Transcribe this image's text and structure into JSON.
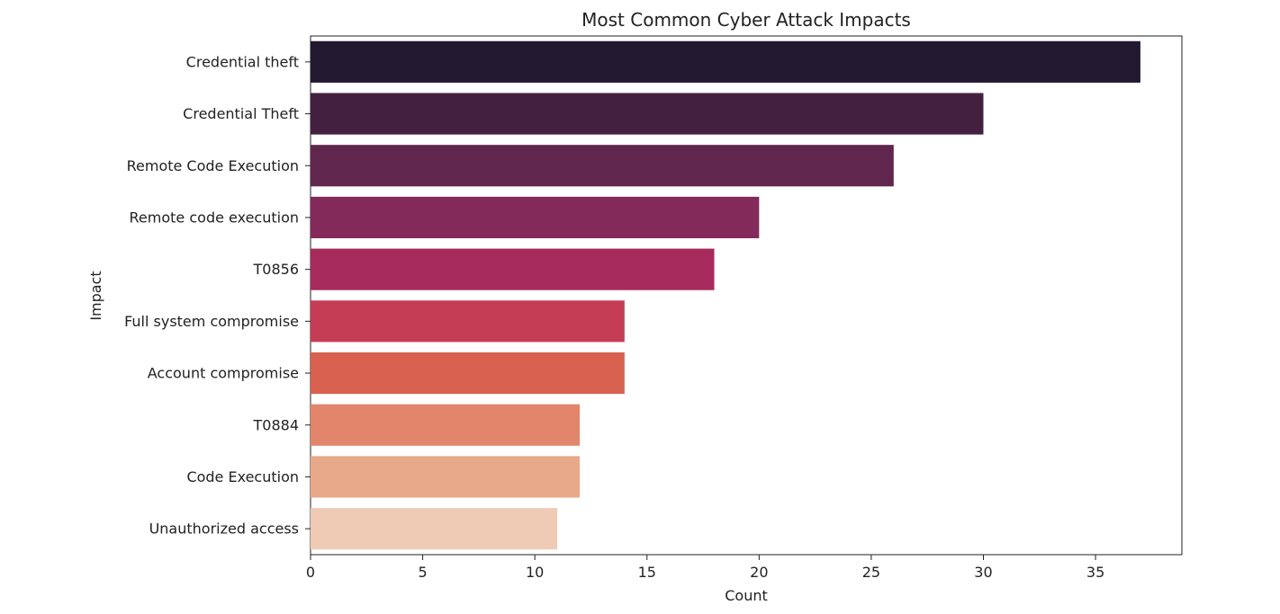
{
  "chart_data": {
    "type": "bar",
    "orientation": "horizontal",
    "title": "Most Common Cyber Attack Impacts",
    "xlabel": "Count",
    "ylabel": "Impact",
    "categories": [
      "Credential theft",
      "Credential Theft",
      "Remote Code Execution",
      "Remote code execution",
      "T0856",
      "Full system compromise",
      "Account compromise",
      "T0884",
      "Code Execution",
      "Unauthorized access"
    ],
    "values": [
      37,
      30,
      26,
      20,
      18,
      14,
      14,
      12,
      12,
      11
    ],
    "colors": [
      "#221830",
      "#432040",
      "#61264e",
      "#832a5a",
      "#a62b5c",
      "#c43d55",
      "#d7604f",
      "#e2856a",
      "#e8a98a",
      "#efcbb5"
    ],
    "xlim": [
      0,
      38.85
    ],
    "xticks": [
      0,
      5,
      10,
      15,
      20,
      25,
      30,
      35
    ],
    "grid": false,
    "legend": "none"
  }
}
